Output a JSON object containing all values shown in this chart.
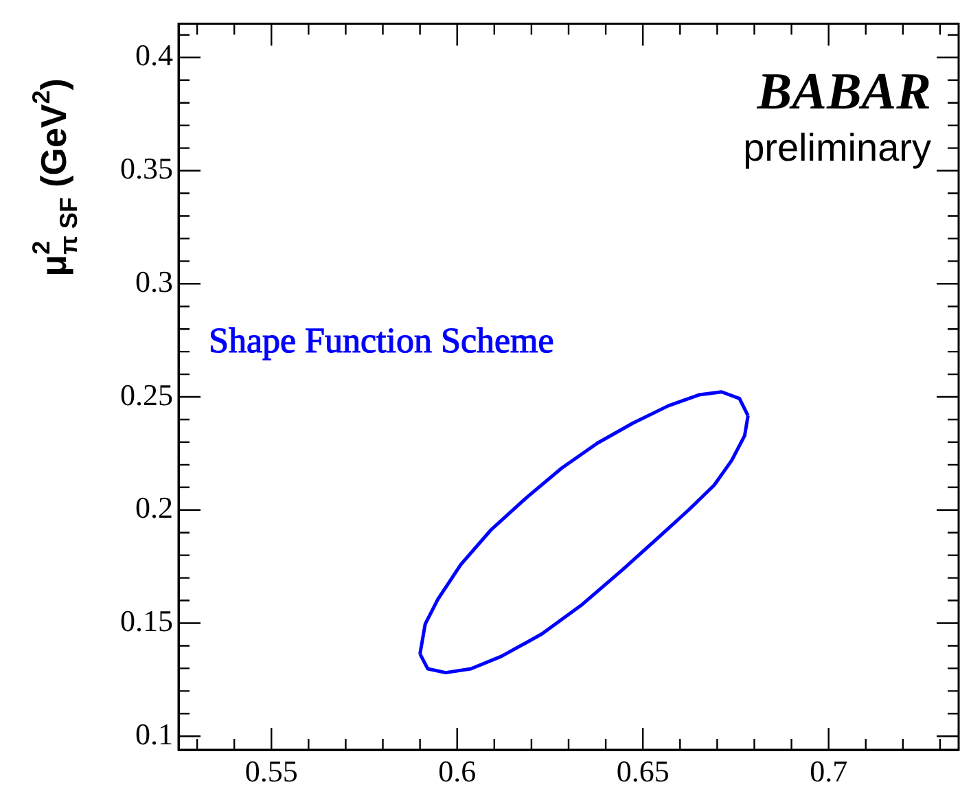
{
  "chart_data": {
    "type": "line",
    "ylabel": "μ$^{2}$$_{π SF}$ (GeV$^{2}$)",
    "marker": "none",
    "line_style": "solid",
    "legend": "left",
    "grid": false,
    "xlim": [
      0.525,
      0.735
    ],
    "xticks": [
      {
        "value": 0.53,
        "label": null
      },
      {
        "value": 0.54,
        "label": null
      },
      0.55,
      {
        "value": 0.56,
        "label": null
      },
      {
        "value": 0.57,
        "label": null
      },
      {
        "value": 0.58,
        "label": null
      },
      {
        "value": 0.59,
        "label": null
      },
      0.6,
      {
        "value": 0.61,
        "label": null
      },
      {
        "value": 0.62,
        "label": null
      },
      {
        "value": 0.63,
        "label": null
      },
      {
        "value": 0.64,
        "label": null
      },
      0.65,
      {
        "value": 0.66,
        "label": null
      },
      {
        "value": 0.67,
        "label": null
      },
      {
        "value": 0.68,
        "label": null
      },
      {
        "value": 0.69,
        "label": null
      },
      0.7,
      {
        "value": 0.71,
        "label": null
      },
      {
        "value": 0.72,
        "label": null
      },
      {
        "value": 0.73,
        "label": null
      }
    ],
    "ylim": [
      0.094,
      0.415
    ],
    "yticks": [
      0.1,
      {
        "value": 0.11,
        "label": null
      },
      {
        "value": 0.12,
        "label": null
      },
      {
        "value": 0.13,
        "label": null
      },
      {
        "value": 0.14,
        "label": null
      },
      0.15,
      {
        "value": 0.16,
        "label": null
      },
      {
        "value": 0.17,
        "label": null
      },
      {
        "value": 0.18,
        "label": null
      },
      {
        "value": 0.19,
        "label": null
      },
      0.2,
      {
        "value": 0.21,
        "label": null
      },
      {
        "value": 0.22,
        "label": null
      },
      {
        "value": 0.23,
        "label": null
      },
      {
        "value": 0.24,
        "label": null
      },
      0.25,
      {
        "value": 0.26,
        "label": null
      },
      {
        "value": 0.27,
        "label": null
      },
      {
        "value": 0.28,
        "label": null
      },
      {
        "value": 0.29,
        "label": null
      },
      0.3,
      {
        "value": 0.31,
        "label": null
      },
      {
        "value": 0.32,
        "label": null
      },
      {
        "value": 0.33,
        "label": null
      },
      {
        "value": 0.34,
        "label": null
      },
      0.35,
      {
        "value": 0.36,
        "label": null
      },
      {
        "value": 0.37,
        "label": null
      },
      {
        "value": 0.38,
        "label": null
      },
      {
        "value": 0.39,
        "label": null
      },
      0.4,
      {
        "value": 0.41,
        "label": null
      }
    ],
    "series": [
      {
        "name": "Shape Function Scheme",
        "color": "#0000ff",
        "x": [
          0.59,
          0.5914,
          0.5948,
          0.601,
          0.6091,
          0.6187,
          0.6282,
          0.6378,
          0.6473,
          0.6569,
          0.6651,
          0.6712,
          0.676,
          0.6783
        ],
        "values": [
          0.1364,
          0.1496,
          0.1605,
          0.1759,
          0.1912,
          0.2055,
          0.2186,
          0.2296,
          0.2384,
          0.2461,
          0.2509,
          0.2522,
          0.2493,
          0.2417
        ]
      },
      {
        "color": "#0000ff",
        "x": [
          0.59,
          0.5921,
          0.5969,
          0.6037,
          0.6119,
          0.6228,
          0.6337,
          0.6446,
          0.6542,
          0.6623,
          0.6692,
          0.6739,
          0.6774,
          0.6783
        ],
        "values": [
          0.1364,
          0.1298,
          0.1281,
          0.1298,
          0.1353,
          0.1452,
          0.1583,
          0.1737,
          0.1879,
          0.2,
          0.211,
          0.2219,
          0.2329,
          0.2417
        ]
      }
    ],
    "annotations": [
      "BABAR",
      "preliminary"
    ]
  }
}
